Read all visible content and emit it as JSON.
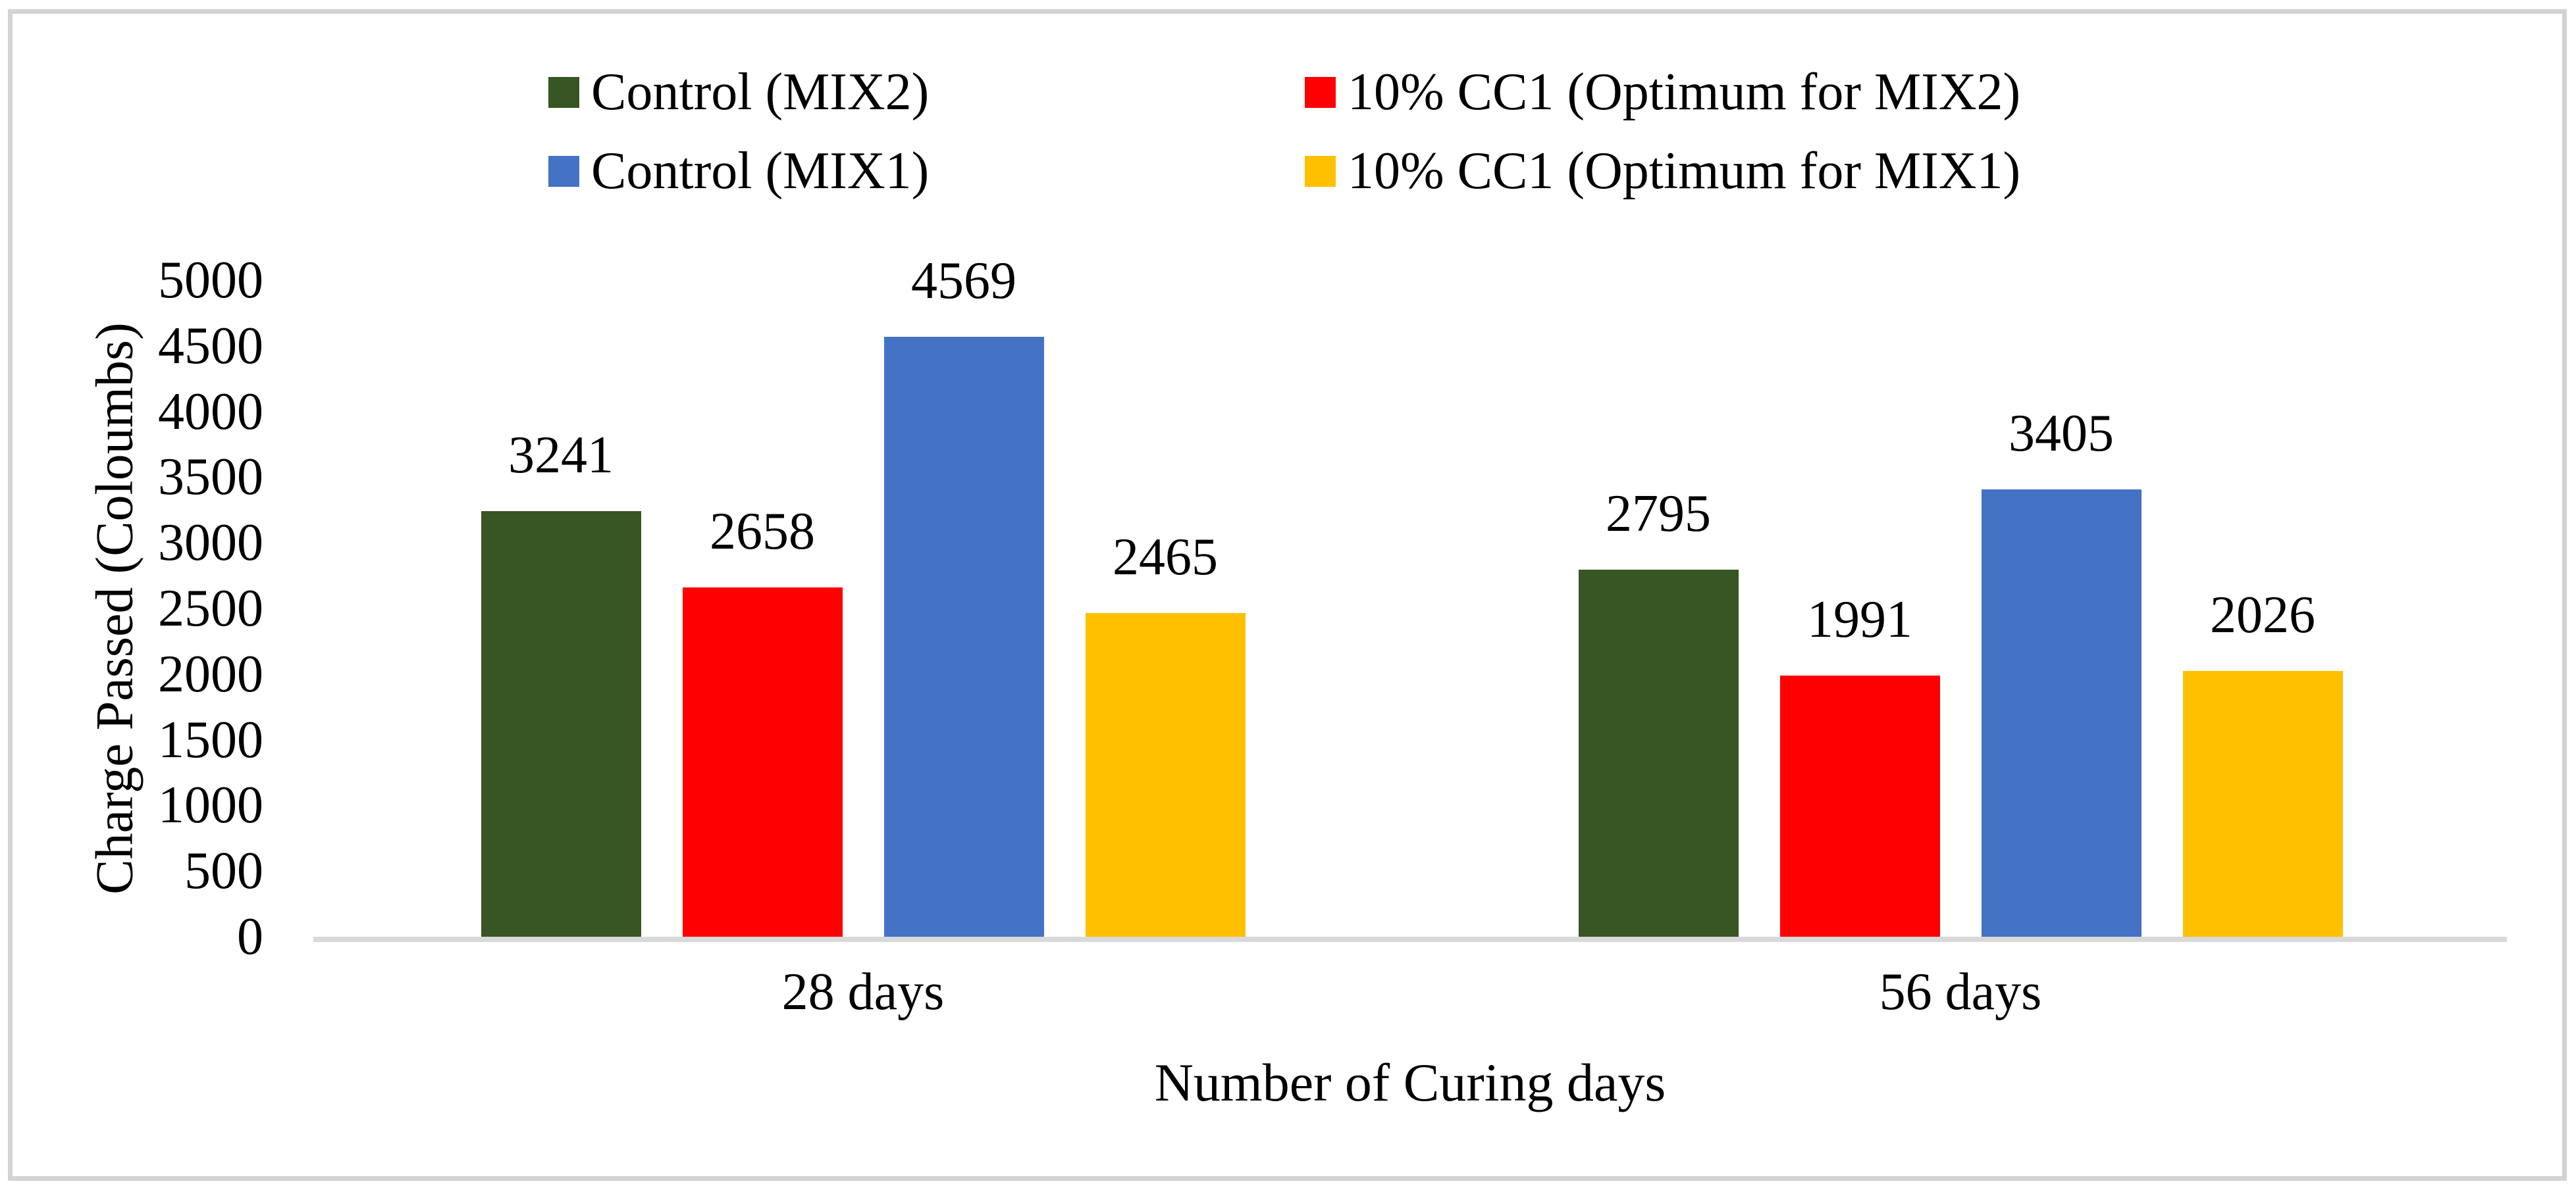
{
  "figure": {
    "background": "#FFFFFF",
    "frame_color": "#D3D3D3",
    "axis_line_color": "#D9D9D9",
    "text_color": "#000000"
  },
  "legend": {
    "position": "top",
    "items": [
      {
        "label": "Control (MIX2)",
        "color": "#375623"
      },
      {
        "label": "10% CC1 (Optimum for MIX2)",
        "color": "#FF0000"
      },
      {
        "label": "Control (MIX1)",
        "color": "#4472C4"
      },
      {
        "label": "10% CC1 (Optimum for MIX1)",
        "color": "#FFC000"
      }
    ]
  },
  "chart_data": {
    "type": "bar",
    "categories": [
      "28 days",
      "56 days"
    ],
    "series": [
      {
        "name": "Control (MIX2)",
        "color": "#375623",
        "values": [
          3241,
          2795
        ]
      },
      {
        "name": "10% CC1 (Optimum for MIX2)",
        "color": "#FF0000",
        "values": [
          2658,
          1991
        ]
      },
      {
        "name": "Control (MIX1)",
        "color": "#4472C4",
        "values": [
          4569,
          3405
        ]
      },
      {
        "name": "10% CC1 (Optimum for MIX1)",
        "color": "#FFC000",
        "values": [
          2465,
          2026
        ]
      }
    ],
    "title": "",
    "xlabel": "Number of Curing days",
    "ylabel": "Charge Passed (Coloumbs)",
    "ylim": [
      0,
      5000
    ],
    "yticks": [
      0,
      500,
      1000,
      1500,
      2000,
      2500,
      3000,
      3500,
      4000,
      4500,
      5000
    ],
    "grid": false,
    "bar_value_labels": true,
    "legend_position": "top"
  }
}
